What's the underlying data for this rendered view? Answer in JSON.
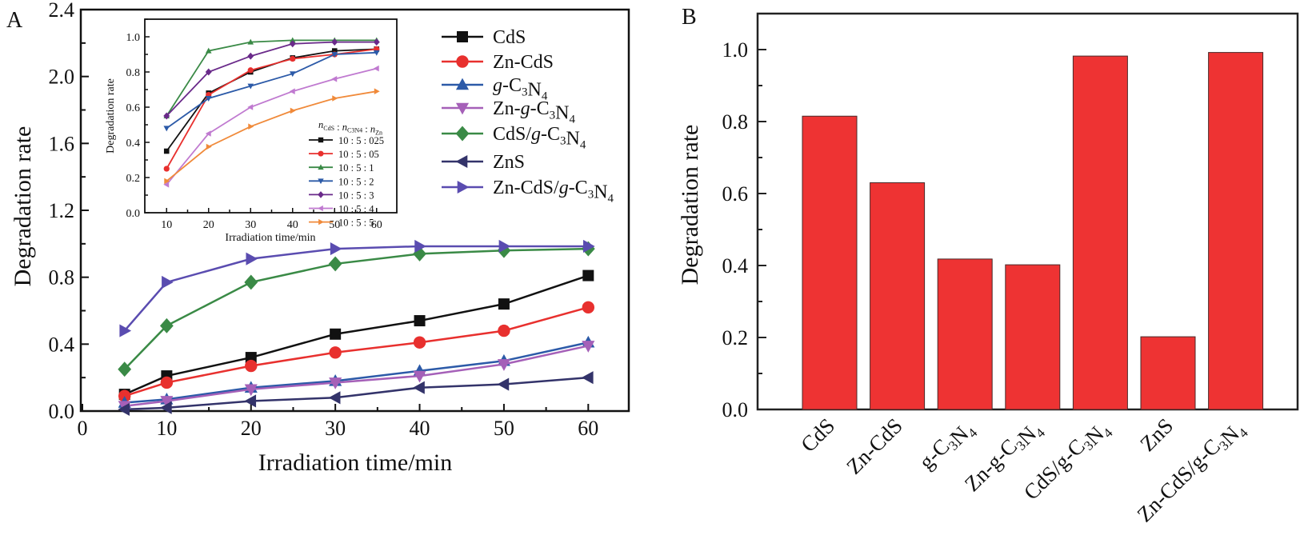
{
  "chart_data": [
    {
      "panel": "A",
      "type": "line",
      "title": "",
      "xlabel": "Irradiation time/min",
      "ylabel": "Degradation rate",
      "xlim": [
        0,
        65
      ],
      "ylim": [
        0,
        2.4
      ],
      "xticks": [
        0,
        10,
        20,
        30,
        40,
        50,
        60
      ],
      "xtick_labels": [
        "0",
        "10",
        "20",
        "30",
        "40",
        "50",
        "60"
      ],
      "yticks": [
        0.0,
        0.4,
        0.8,
        1.2,
        1.6,
        2.0,
        2.4
      ],
      "ytick_labels": [
        "0.0",
        "0.4",
        "0.8",
        "1.2",
        "1.6",
        "2.0",
        "2.4"
      ],
      "grid": false,
      "legend_position": "top-right",
      "x": [
        5,
        10,
        20,
        30,
        40,
        50,
        60
      ],
      "series": [
        {
          "name": "CdS",
          "label_parts": [
            [
              "CdS",
              ""
            ]
          ],
          "color": "#111111",
          "marker": "square",
          "values": [
            0.1,
            0.21,
            0.32,
            0.46,
            0.54,
            0.64,
            0.81
          ]
        },
        {
          "name": "Zn-CdS",
          "label_parts": [
            [
              "Zn-CdS",
              ""
            ]
          ],
          "color": "#e8302e",
          "marker": "circle",
          "values": [
            0.09,
            0.17,
            0.27,
            0.35,
            0.41,
            0.48,
            0.62
          ]
        },
        {
          "name": "g-C3N4",
          "label_parts": [
            [
              "g",
              "i"
            ],
            [
              "-C",
              ""
            ],
            [
              "3",
              "sub"
            ],
            [
              "N",
              ""
            ],
            [
              "4",
              "sub"
            ]
          ],
          "color": "#2c5aa8",
          "marker": "triangle-up",
          "values": [
            0.05,
            0.07,
            0.14,
            0.18,
            0.24,
            0.3,
            0.41
          ]
        },
        {
          "name": "Zn-g-C3N4",
          "label_parts": [
            [
              "Zn-",
              ""
            ],
            [
              "g",
              "i"
            ],
            [
              "-C",
              ""
            ],
            [
              "3",
              "sub"
            ],
            [
              "N",
              ""
            ],
            [
              "4",
              "sub"
            ]
          ],
          "color": "#a560b8",
          "marker": "triangle-down",
          "values": [
            0.03,
            0.06,
            0.13,
            0.17,
            0.21,
            0.28,
            0.39
          ]
        },
        {
          "name": "CdS/g-C3N4",
          "label_parts": [
            [
              "CdS/",
              ""
            ],
            [
              "g",
              "i"
            ],
            [
              "-C",
              ""
            ],
            [
              "3",
              "sub"
            ],
            [
              "N",
              ""
            ],
            [
              "4",
              "sub"
            ]
          ],
          "color": "#3a8a46",
          "marker": "diamond",
          "values": [
            0.25,
            0.51,
            0.77,
            0.88,
            0.94,
            0.96,
            0.97
          ]
        },
        {
          "name": "ZnS",
          "label_parts": [
            [
              "ZnS",
              ""
            ]
          ],
          "color": "#33336a",
          "marker": "triangle-left",
          "values": [
            0.01,
            0.02,
            0.06,
            0.08,
            0.14,
            0.16,
            0.2
          ]
        },
        {
          "name": "Zn-CdS/g-C3N4",
          "label_parts": [
            [
              "Zn-CdS/",
              ""
            ],
            [
              "g",
              "i"
            ],
            [
              "-C",
              ""
            ],
            [
              "3",
              "sub"
            ],
            [
              "N",
              ""
            ],
            [
              "4",
              "sub"
            ]
          ],
          "color": "#5a4cb0",
          "marker": "triangle-right",
          "values": [
            0.48,
            0.77,
            0.91,
            0.97,
            0.985,
            0.985,
            0.985
          ]
        }
      ]
    },
    {
      "panel": "A-inset",
      "type": "line",
      "title": "",
      "xlabel": "Irradiation time/min",
      "ylabel": "Degradation rate",
      "xlim": [
        5,
        65
      ],
      "ylim": [
        0,
        1.1
      ],
      "xticks": [
        10,
        20,
        30,
        40,
        50,
        60
      ],
      "xtick_labels": [
        "10",
        "20",
        "30",
        "40",
        "50",
        "60"
      ],
      "yticks": [
        0.0,
        0.2,
        0.4,
        0.6,
        0.8,
        1.0
      ],
      "ytick_labels": [
        "0.0",
        "0.2",
        "0.4",
        "0.6",
        "0.8",
        "1.0"
      ],
      "grid": false,
      "legend_title": "nCdS : nC3N4 : nZn",
      "legend_position": "bottom-right",
      "x": [
        10,
        20,
        30,
        40,
        50,
        60
      ],
      "series": [
        {
          "name": "10 : 5 : 025",
          "color": "#111111",
          "marker": "square",
          "values": [
            0.35,
            0.68,
            0.8,
            0.88,
            0.92,
            0.93
          ]
        },
        {
          "name": "10 : 5 : 05",
          "color": "#e8302e",
          "marker": "circle",
          "values": [
            0.25,
            0.67,
            0.81,
            0.875,
            0.9,
            0.93
          ]
        },
        {
          "name": "10 : 5 : 1",
          "color": "#3a8a46",
          "marker": "triangle-up",
          "values": [
            0.55,
            0.92,
            0.97,
            0.98,
            0.98,
            0.98
          ]
        },
        {
          "name": "10 : 5 : 2",
          "color": "#2c5aa8",
          "marker": "triangle-down",
          "values": [
            0.48,
            0.65,
            0.72,
            0.79,
            0.9,
            0.91
          ]
        },
        {
          "name": "10 : 5 : 3",
          "color": "#6a2a8a",
          "marker": "diamond",
          "values": [
            0.55,
            0.8,
            0.89,
            0.96,
            0.97,
            0.97
          ]
        },
        {
          "name": "10 : 5 : 4",
          "color": "#c07ad0",
          "marker": "triangle-left",
          "values": [
            0.16,
            0.45,
            0.6,
            0.69,
            0.76,
            0.82
          ]
        },
        {
          "name": "10 : 5 : 5",
          "color": "#f08a3a",
          "marker": "triangle-right",
          "values": [
            0.18,
            0.375,
            0.49,
            0.58,
            0.65,
            0.69
          ]
        }
      ]
    },
    {
      "panel": "B",
      "type": "bar",
      "title": "",
      "xlabel": "",
      "ylabel": "Degradation rate",
      "ylim": [
        0,
        1.1
      ],
      "yticks": [
        0.0,
        0.2,
        0.4,
        0.6,
        0.8,
        1.0
      ],
      "ytick_labels": [
        "0.0",
        "0.2",
        "0.4",
        "0.6",
        "0.8",
        "1.0"
      ],
      "grid": false,
      "bar_color": "#ee3333",
      "categories": [
        "CdS",
        "Zn-CdS",
        "g-C3N4",
        "Zn-g-C3N4",
        "CdS/g-C3N4",
        "ZnS",
        "Zn-CdS/g-C3N4"
      ],
      "category_label_parts": [
        [
          [
            "CdS",
            ""
          ]
        ],
        [
          [
            "Zn-CdS",
            ""
          ]
        ],
        [
          [
            "g-C",
            ""
          ],
          [
            "3",
            "sub"
          ],
          [
            "N",
            ""
          ],
          [
            "4",
            "sub"
          ]
        ],
        [
          [
            "Zn-g-C",
            ""
          ],
          [
            "3",
            "sub"
          ],
          [
            "N",
            ""
          ],
          [
            "4",
            "sub"
          ]
        ],
        [
          [
            "CdS/g-C",
            ""
          ],
          [
            "3",
            "sub"
          ],
          [
            "N",
            ""
          ],
          [
            "4",
            "sub"
          ]
        ],
        [
          [
            "ZnS",
            ""
          ]
        ],
        [
          [
            "Zn-CdS/g-C",
            ""
          ],
          [
            "3",
            "sub"
          ],
          [
            "N",
            ""
          ],
          [
            "4",
            "sub"
          ]
        ]
      ],
      "values": [
        0.815,
        0.63,
        0.418,
        0.402,
        0.982,
        0.202,
        0.992
      ]
    }
  ],
  "panel_labels": {
    "a": "A",
    "b": "B"
  }
}
